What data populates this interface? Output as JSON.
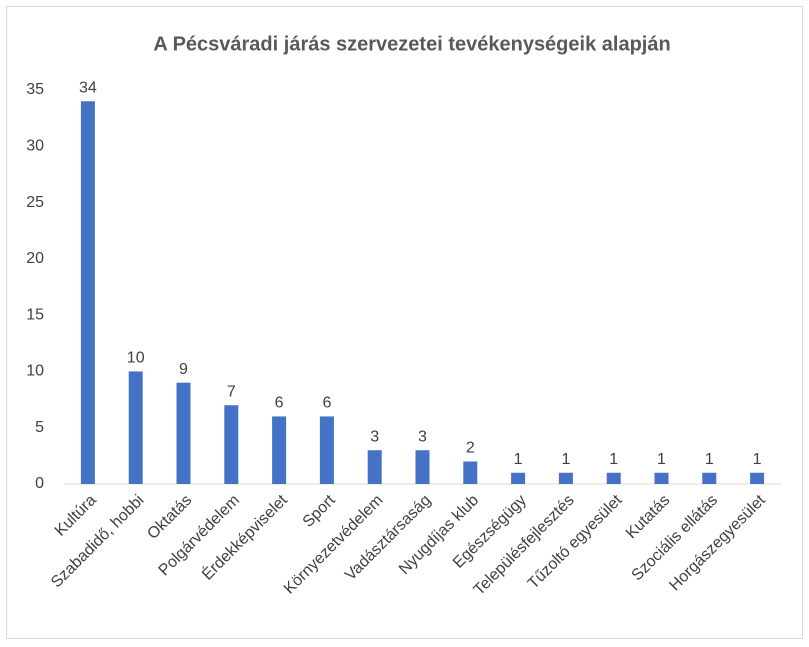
{
  "chart_data": {
    "type": "bar",
    "title": "A Pécsváradi járás szervezetei tevékenységeik alapján",
    "categories": [
      "Kultúra",
      "Szabadidő, hobbi",
      "Oktatás",
      "Polgárvédelem",
      "Érdekképviselet",
      "Sport",
      "Környezetvédelem",
      "Vadásztársaság",
      "Nyugdíjas klub",
      "Egészségügy",
      "Településfejlesztés",
      "Tűzoltó egyesület",
      "Kutatás",
      "Szociális ellátás",
      "Horgászegyesület"
    ],
    "values": [
      34,
      10,
      9,
      7,
      6,
      6,
      3,
      3,
      2,
      1,
      1,
      1,
      1,
      1,
      1
    ],
    "color": "#4472c4",
    "ylim": [
      0,
      35
    ],
    "yticks": [
      0,
      5,
      10,
      15,
      20,
      25,
      30,
      35
    ],
    "grid": false
  }
}
